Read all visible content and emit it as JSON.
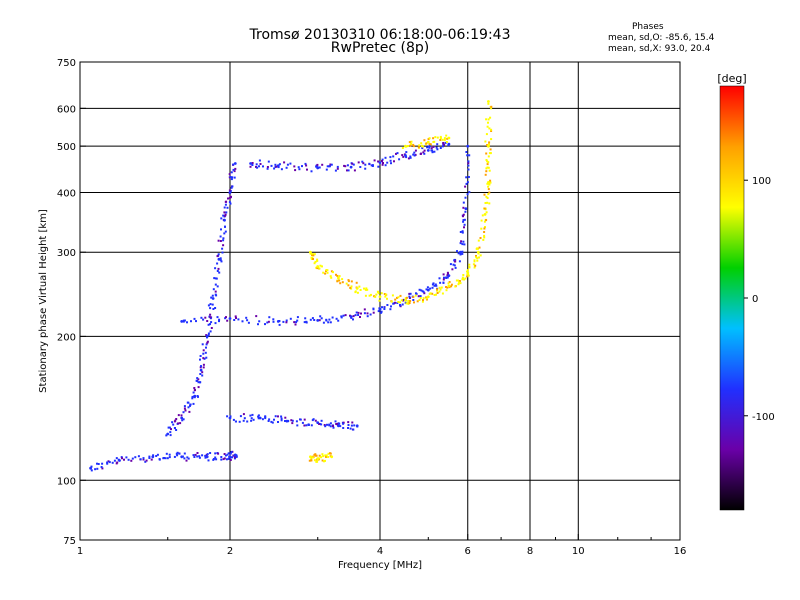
{
  "title": "Tromsø 20130310 06:18:00-06:19:43",
  "subtitle": "RwPretec (8p)",
  "info": {
    "heading": "Phases",
    "line1": "mean, sd,O: -85.6, 15.4",
    "line2": "mean, sd,X:  93.0, 20.4"
  },
  "chart_data": {
    "type": "scatter",
    "xlabel": "Frequency [MHz]",
    "ylabel": "Stationary phase Virtual Height [km]",
    "xscale": "log",
    "yscale": "log",
    "xlim": [
      1,
      16
    ],
    "ylim": [
      75,
      750
    ],
    "xticks": [
      1,
      2,
      4,
      6,
      8,
      10,
      16
    ],
    "yticks": [
      75,
      100,
      200,
      300,
      400,
      500,
      600,
      750
    ],
    "xgrid": [
      2,
      4,
      6,
      8,
      10
    ],
    "ygrid": [
      100,
      200,
      300,
      400,
      500,
      600
    ],
    "colorbar": {
      "label": "[deg]",
      "range": [
        -180,
        180
      ],
      "ticks": [
        100,
        0,
        -100
      ],
      "colors": [
        "#000000",
        "#6a00a8",
        "#2030ff",
        "#00c0ff",
        "#00d000",
        "#ffff00",
        "#ffa000",
        "#ff0000"
      ]
    },
    "series": [
      {
        "phase": -95,
        "traces": [
          [
            1.05,
            106
          ],
          [
            1.2,
            110
          ],
          [
            1.4,
            112
          ],
          [
            1.6,
            112
          ],
          [
            1.8,
            112
          ],
          [
            2.0,
            112
          ],
          [
            2.05,
            113
          ]
        ]
      },
      {
        "phase": -95,
        "traces": [
          [
            1.5,
            125
          ],
          [
            1.6,
            135
          ],
          [
            1.7,
            150
          ],
          [
            1.75,
            170
          ],
          [
            1.8,
            200
          ],
          [
            1.85,
            240
          ],
          [
            1.9,
            290
          ],
          [
            1.95,
            350
          ],
          [
            2.0,
            400
          ],
          [
            2.05,
            460
          ]
        ]
      },
      {
        "phase": -90,
        "traces": [
          [
            1.6,
            215
          ],
          [
            2.0,
            218
          ],
          [
            2.5,
            215
          ],
          [
            3.0,
            216
          ],
          [
            3.5,
            220
          ],
          [
            4.0,
            228
          ],
          [
            4.5,
            238
          ],
          [
            5.0,
            250
          ],
          [
            5.5,
            268
          ],
          [
            5.8,
            300
          ],
          [
            5.95,
            370
          ],
          [
            6.0,
            500
          ]
        ]
      },
      {
        "phase": -95,
        "traces": [
          [
            2.2,
            460
          ],
          [
            2.5,
            455
          ],
          [
            3.0,
            450
          ],
          [
            3.5,
            452
          ],
          [
            4.0,
            462
          ],
          [
            4.5,
            478
          ],
          [
            5.0,
            490
          ],
          [
            5.5,
            505
          ]
        ]
      },
      {
        "phase": -90,
        "traces": [
          [
            2.0,
            135
          ],
          [
            2.3,
            135
          ],
          [
            2.6,
            133
          ],
          [
            3.0,
            132
          ],
          [
            3.3,
            130
          ],
          [
            3.6,
            130
          ]
        ]
      },
      {
        "phase": 95,
        "traces": [
          [
            2.9,
            300
          ],
          [
            3.0,
            280
          ],
          [
            3.3,
            265
          ],
          [
            3.6,
            252
          ],
          [
            4.0,
            242
          ],
          [
            4.5,
            238
          ],
          [
            5.0,
            242
          ],
          [
            5.5,
            255
          ],
          [
            6.0,
            270
          ],
          [
            6.3,
            300
          ],
          [
            6.5,
            360
          ],
          [
            6.6,
            420
          ],
          [
            6.6,
            500
          ],
          [
            6.6,
            620
          ]
        ]
      },
      {
        "phase": 100,
        "traces": [
          [
            2.9,
            112
          ],
          [
            3.0,
            111
          ],
          [
            3.2,
            112
          ]
        ]
      },
      {
        "phase": 100,
        "traces": [
          [
            4.5,
            500
          ],
          [
            5.0,
            510
          ],
          [
            5.5,
            520
          ]
        ]
      }
    ]
  }
}
